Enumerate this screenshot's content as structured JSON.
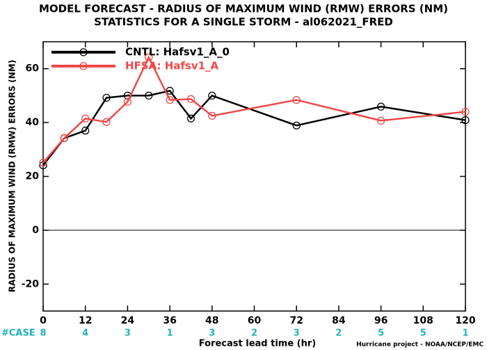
{
  "chart_data": {
    "type": "line",
    "title": "MODEL FORECAST - RADIUS OF MAXIMUM WIND (RMW) ERRORS (NM)",
    "subtitle": "STATISTICS FOR A SINGLE STORM - al062021_FRED",
    "x_label": "Forecast lead time (hr)",
    "y_label": "RADIUS OF MAXIMUM WIND (RMW) ERRORS (NM)",
    "x": [
      0,
      6,
      12,
      18,
      24,
      30,
      36,
      42,
      48,
      72,
      96,
      120
    ],
    "series": [
      {
        "name": "CNTL: Hafsv1_A_0",
        "color": "#000000",
        "values": [
          24.1,
          34.2,
          37,
          49.2,
          50,
          50,
          51.8,
          41.5,
          50,
          38.9,
          45.9,
          40.9
        ]
      },
      {
        "name": "HFSA: Hafsv1_A",
        "color": "#f04848",
        "values": [
          25.1,
          34.2,
          41.5,
          40.2,
          47.7,
          64.2,
          48.4,
          48.7,
          42.5,
          48.4,
          40.7,
          44
        ]
      }
    ],
    "xlim": [
      0,
      120
    ],
    "xticks": [
      0,
      12,
      24,
      36,
      48,
      60,
      72,
      84,
      96,
      108,
      120
    ],
    "ylim": [
      -30,
      70
    ],
    "yticks": [
      -20,
      0,
      20,
      40,
      60
    ],
    "zero_line": true,
    "case_label": "#CASE",
    "case_counts": [
      8,
      4,
      3,
      1,
      3,
      2,
      3,
      2,
      5,
      5,
      1
    ],
    "case_color": "#22b0b8",
    "footer": "Hurricane project - NOAA/NCEP/EMC"
  }
}
